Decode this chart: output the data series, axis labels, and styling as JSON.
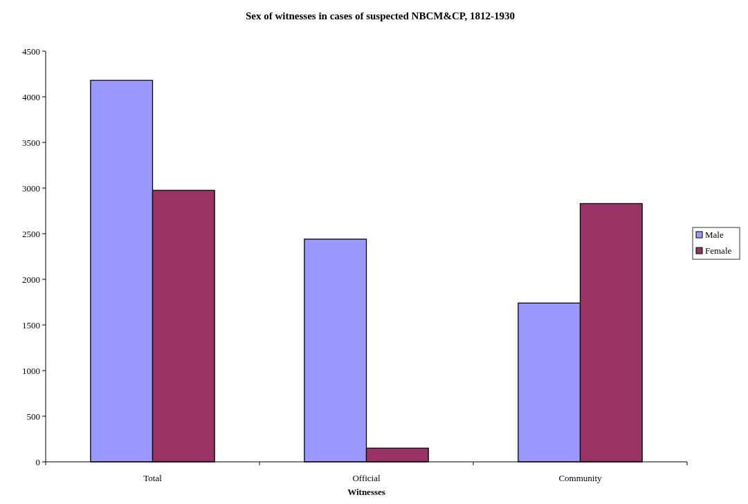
{
  "chart_data": {
    "type": "bar",
    "title": "Sex of witnesses in cases of suspected NBCM&CP, 1812-1930",
    "xlabel": "Witnesses",
    "categories": [
      "Total",
      "Official",
      "Community"
    ],
    "series": [
      {
        "name": "Male",
        "color": "#9999ff",
        "values": [
          4180,
          2440,
          1740
        ]
      },
      {
        "name": "Female",
        "color": "#993366",
        "values": [
          2975,
          150,
          2830
        ]
      }
    ],
    "ylim": [
      0,
      4500
    ],
    "yticks": [
      0,
      500,
      1000,
      1500,
      2000,
      2500,
      3000,
      3500,
      4000,
      4500
    ],
    "legend": "right",
    "grid": false
  }
}
